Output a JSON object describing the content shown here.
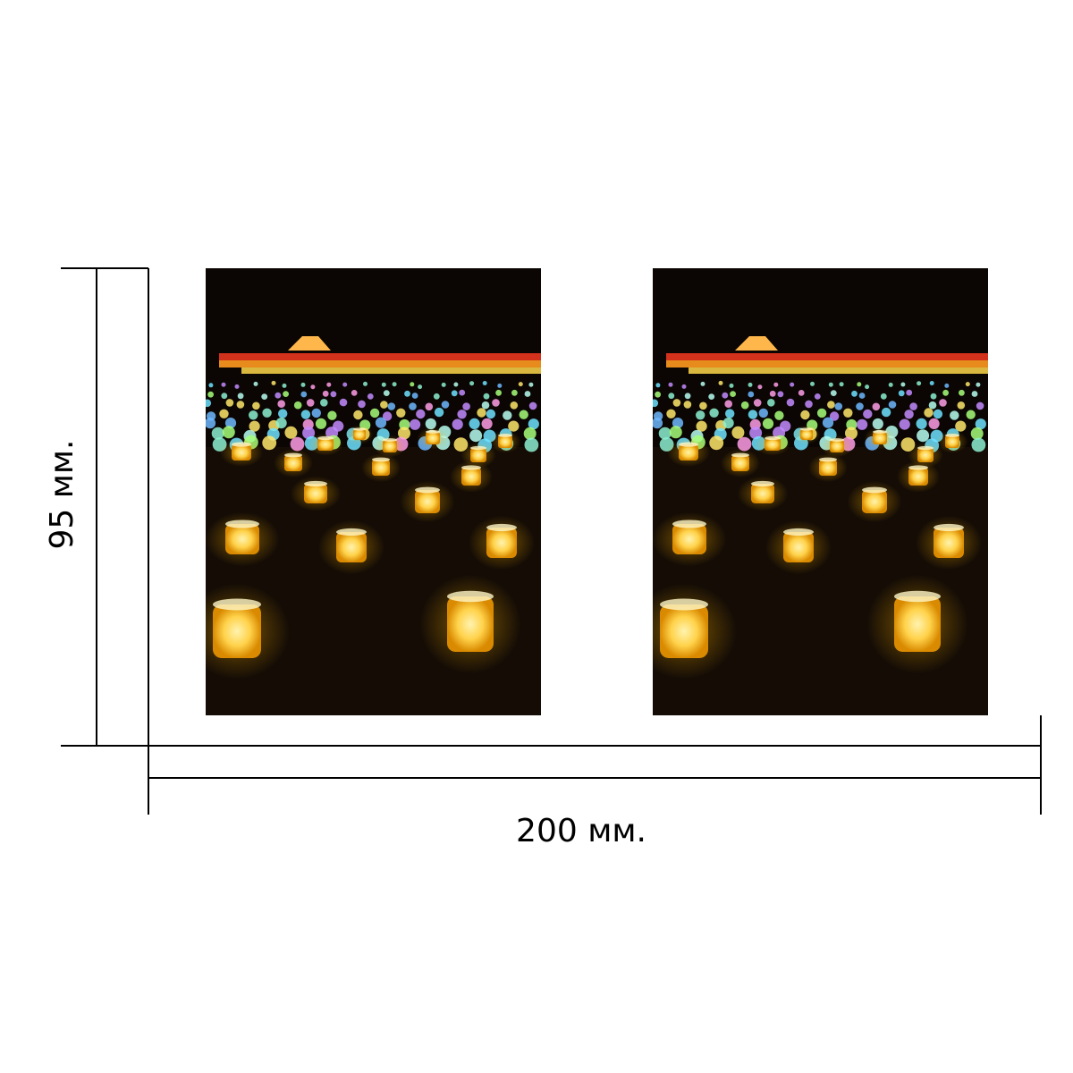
{
  "dimensions": {
    "width_label": "200 мм.",
    "height_label": "95 мм."
  },
  "panels": [
    {
      "name": "left-panel",
      "icon": "candle-field-photo"
    },
    {
      "name": "right-panel",
      "icon": "candle-field-photo"
    }
  ],
  "colors": {
    "background": "#ffffff",
    "line": "#000000",
    "photo_background": "#0b0603",
    "candle_glow": "#ffd24a",
    "candle_core": "#fff3b0"
  }
}
